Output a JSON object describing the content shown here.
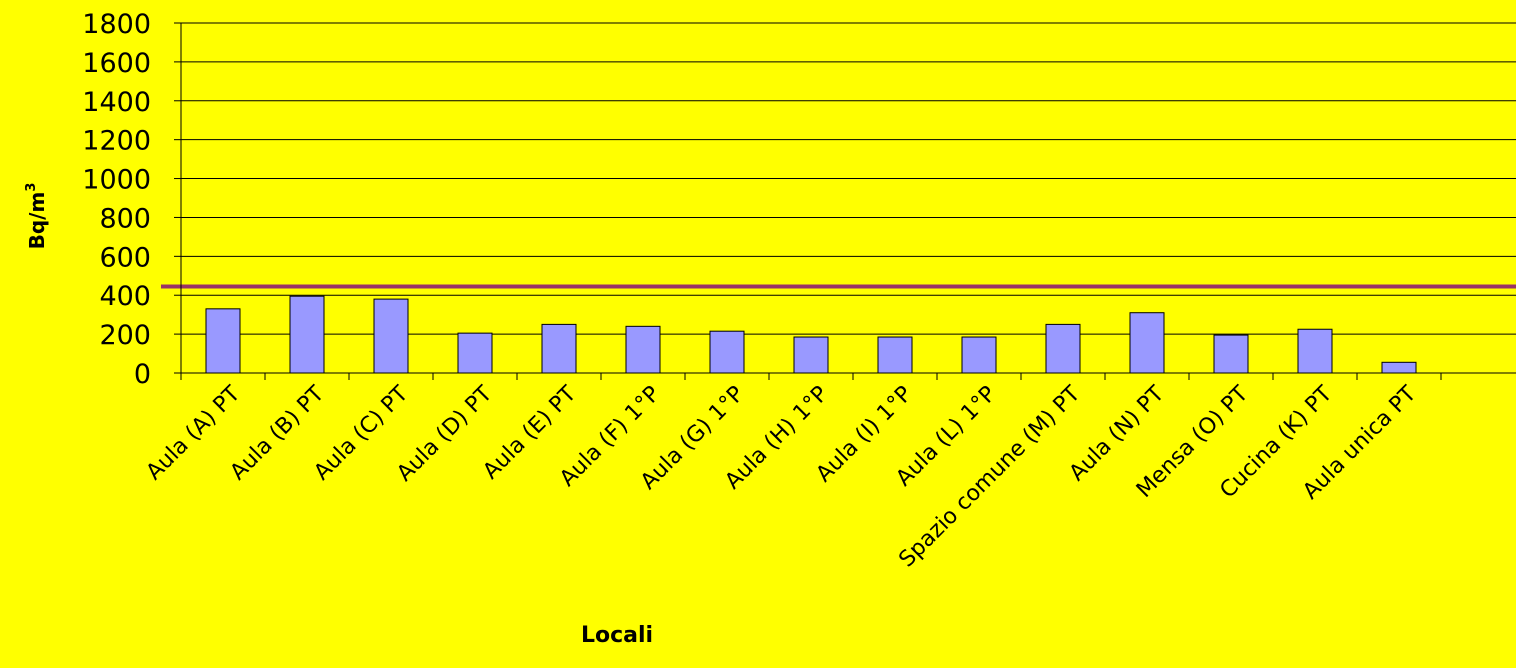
{
  "chart_data": {
    "type": "bar",
    "title": "",
    "xlabel": "Locali",
    "ylabel_main": "Bq/m",
    "ylabel_sup": "3",
    "ylim": [
      0,
      1800
    ],
    "yticks": [
      0,
      200,
      400,
      600,
      800,
      1000,
      1200,
      1400,
      1600,
      1800
    ],
    "grid": true,
    "categories": [
      "Aula (A) PT",
      "Aula (B) PT",
      "Aula (C) PT",
      "Aula (D) PT",
      "Aula (E) PT",
      "Aula (F) 1°P",
      "Aula (G) 1°P",
      "Aula (H) 1°P",
      "Aula (I) 1°P",
      "Aula (L) 1°P",
      "Spazio comune (M) PT",
      "Aula (N) PT",
      "Mensa (O) PT",
      "Cucina (K) PT",
      "Aula unica PT"
    ],
    "values": [
      330,
      395,
      380,
      205,
      250,
      240,
      215,
      185,
      185,
      185,
      250,
      310,
      195,
      225,
      55
    ],
    "reference_line": {
      "value": 445
    },
    "colors": {
      "background": "#ffff00",
      "bar_fill": "#9999ff",
      "bar_stroke": "#000000",
      "gridline": "#000000",
      "reference_line": "#993366",
      "text": "#000000"
    }
  }
}
